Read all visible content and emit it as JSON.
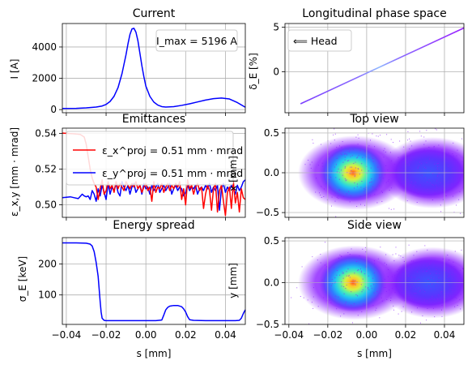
{
  "colors": {
    "current": "#0000ff",
    "emit_x": "#ff0000",
    "emit_y": "#0000ff",
    "espread": "#0000ff"
  },
  "chart_data": [
    {
      "id": "current",
      "type": "line",
      "title": "Current",
      "xlabel": "",
      "ylabel": "I [A]",
      "xlim": [
        -0.042,
        0.05
      ],
      "ylim": [
        -200,
        5500
      ],
      "xticks": [
        -0.04,
        -0.02,
        0.0,
        0.02,
        0.04
      ],
      "yticks": [
        0,
        2000,
        4000
      ],
      "ytick_labels": [
        "0",
        "2000",
        "4000"
      ],
      "grid": true,
      "annotation": "I_max = 5196 A",
      "series": [
        {
          "x": [
            -0.042,
            -0.035,
            -0.03,
            -0.025,
            -0.022,
            -0.02,
            -0.018,
            -0.016,
            -0.014,
            -0.012,
            -0.01,
            -0.009,
            -0.008,
            -0.007,
            -0.006,
            -0.005,
            -0.004,
            -0.003,
            -0.002,
            -0.001,
            0.0,
            0.002,
            0.004,
            0.006,
            0.008,
            0.01,
            0.014,
            0.018,
            0.022,
            0.026,
            0.03,
            0.034,
            0.038,
            0.042,
            0.046,
            0.05
          ],
          "y": [
            70,
            80,
            110,
            160,
            230,
            330,
            520,
            850,
            1400,
            2300,
            3500,
            4200,
            4800,
            5150,
            5196,
            4950,
            4400,
            3600,
            2800,
            2100,
            1500,
            850,
            480,
            290,
            190,
            160,
            190,
            270,
            370,
            490,
            610,
            700,
            740,
            680,
            450,
            150
          ]
        }
      ]
    },
    {
      "id": "phase",
      "type": "scatter",
      "title": "Longitudinal phase space",
      "xlabel": "",
      "ylabel": "δ_E [%]",
      "xlim": [
        -0.042,
        0.05
      ],
      "ylim": [
        -4.6,
        5.4
      ],
      "xticks": [
        -0.04,
        -0.02,
        0.0,
        0.02,
        0.04
      ],
      "yticks": [
        0,
        5
      ],
      "ytick_labels": [
        "0",
        "5"
      ],
      "grid": true,
      "legend": "⟸  Head",
      "line": {
        "x": [
          -0.034,
          0.05
        ],
        "y": [
          -3.6,
          4.9
        ]
      }
    },
    {
      "id": "emittance",
      "type": "line",
      "title": "Emittances",
      "xlabel": "",
      "ylabel": "ε_x,y [mm · mrad]",
      "xlim": [
        -0.042,
        0.05
      ],
      "ylim": [
        0.493,
        0.543
      ],
      "xticks": [
        -0.04,
        -0.02,
        0.0,
        0.02,
        0.04
      ],
      "yticks": [
        0.5,
        0.52,
        0.54
      ],
      "ytick_labels": [
        "0.50",
        "0.52",
        "0.54"
      ],
      "grid": true,
      "legend_position": "upper-left",
      "series": [
        {
          "name": "ε_x^proj = 0.51 mm · mrad",
          "x": [
            -0.042,
            -0.036,
            -0.033,
            -0.031,
            -0.03,
            -0.029,
            -0.028,
            -0.027,
            -0.026,
            -0.025,
            -0.024,
            -0.023,
            -0.022,
            -0.021,
            -0.02,
            -0.019,
            -0.018,
            -0.017,
            -0.016,
            -0.015,
            -0.014,
            -0.013,
            -0.012,
            -0.011,
            -0.01,
            -0.009,
            -0.008,
            -0.007,
            -0.006,
            -0.005,
            -0.004,
            -0.003,
            -0.002,
            -0.001,
            0.0,
            0.001,
            0.002,
            0.003,
            0.004,
            0.005,
            0.006,
            0.007,
            0.008,
            0.009,
            0.01,
            0.011,
            0.012,
            0.013,
            0.014,
            0.015,
            0.016,
            0.017,
            0.018,
            0.019,
            0.02,
            0.021,
            0.022,
            0.023,
            0.024,
            0.025,
            0.026,
            0.027,
            0.028,
            0.029,
            0.03,
            0.031,
            0.032,
            0.033,
            0.034,
            0.035,
            0.036,
            0.037,
            0.038,
            0.039,
            0.04,
            0.041,
            0.042,
            0.043,
            0.044,
            0.045,
            0.046,
            0.047,
            0.048,
            0.049,
            0.05
          ],
          "y": [
            0.5402,
            0.5398,
            0.5395,
            0.538,
            0.534,
            0.527,
            0.52,
            0.515,
            0.512,
            0.51,
            0.503,
            0.509,
            0.514,
            0.506,
            0.508,
            0.513,
            0.509,
            0.511,
            0.507,
            0.513,
            0.509,
            0.512,
            0.51,
            0.508,
            0.513,
            0.511,
            0.509,
            0.512,
            0.51,
            0.513,
            0.509,
            0.511,
            0.507,
            0.51,
            0.512,
            0.508,
            0.51,
            0.502,
            0.513,
            0.507,
            0.51,
            0.509,
            0.512,
            0.507,
            0.51,
            0.512,
            0.508,
            0.511,
            0.509,
            0.512,
            0.51,
            0.513,
            0.503,
            0.509,
            0.5,
            0.514,
            0.509,
            0.511,
            0.506,
            0.51,
            0.512,
            0.508,
            0.51,
            0.498,
            0.506,
            0.511,
            0.508,
            0.497,
            0.509,
            0.512,
            0.496,
            0.508,
            0.511,
            0.502,
            0.494,
            0.507,
            0.51,
            0.498,
            0.513,
            0.501,
            0.507,
            0.496,
            0.509,
            0.504,
            0.503
          ]
        },
        {
          "name": "ε_y^proj = 0.51 mm · mrad",
          "x": [
            -0.042,
            -0.038,
            -0.036,
            -0.034,
            -0.032,
            -0.031,
            -0.03,
            -0.029,
            -0.028,
            -0.027,
            -0.026,
            -0.025,
            -0.024,
            -0.023,
            -0.022,
            -0.021,
            -0.02,
            -0.019,
            -0.018,
            -0.017,
            -0.016,
            -0.015,
            -0.014,
            -0.013,
            -0.012,
            -0.011,
            -0.01,
            -0.009,
            -0.008,
            -0.007,
            -0.006,
            -0.005,
            -0.004,
            -0.003,
            -0.002,
            -0.001,
            0.0,
            0.001,
            0.002,
            0.003,
            0.004,
            0.005,
            0.006,
            0.007,
            0.008,
            0.009,
            0.01,
            0.011,
            0.012,
            0.013,
            0.014,
            0.015,
            0.016,
            0.017,
            0.018,
            0.019,
            0.02,
            0.021,
            0.022,
            0.023,
            0.024,
            0.025,
            0.026,
            0.027,
            0.028,
            0.029,
            0.03,
            0.031,
            0.032,
            0.033,
            0.034,
            0.035,
            0.036,
            0.037,
            0.038,
            0.039,
            0.04,
            0.041,
            0.042,
            0.043,
            0.044,
            0.045,
            0.046,
            0.047,
            0.048,
            0.049,
            0.05
          ],
          "y": [
            0.504,
            0.5045,
            0.504,
            0.5035,
            0.506,
            0.505,
            0.5045,
            0.505,
            0.503,
            0.508,
            0.506,
            0.502,
            0.509,
            0.505,
            0.511,
            0.507,
            0.503,
            0.512,
            0.506,
            0.51,
            0.508,
            0.512,
            0.507,
            0.505,
            0.513,
            0.51,
            0.508,
            0.511,
            0.506,
            0.51,
            0.512,
            0.507,
            0.509,
            0.511,
            0.506,
            0.512,
            0.509,
            0.51,
            0.506,
            0.511,
            0.508,
            0.51,
            0.512,
            0.507,
            0.509,
            0.511,
            0.508,
            0.51,
            0.512,
            0.506,
            0.509,
            0.511,
            0.508,
            0.51,
            0.509,
            0.505,
            0.507,
            0.511,
            0.508,
            0.51,
            0.509,
            0.511,
            0.506,
            0.509,
            0.51,
            0.508,
            0.511,
            0.509,
            0.512,
            0.507,
            0.51,
            0.508,
            0.511,
            0.497,
            0.509,
            0.512,
            0.507,
            0.51,
            0.508,
            0.511,
            0.509,
            0.506,
            0.511,
            0.508,
            0.51,
            0.513,
            0.514
          ]
        }
      ]
    },
    {
      "id": "topview",
      "type": "heatmap",
      "title": "Top view",
      "xlabel": "",
      "ylabel": "x [mm]",
      "xlim": [
        -0.042,
        0.05
      ],
      "ylim": [
        -0.56,
        0.56
      ],
      "xticks": [
        -0.04,
        -0.02,
        0.0,
        0.02,
        0.04
      ],
      "yticks": [
        -0.5,
        0.0,
        0.5
      ],
      "ytick_labels": [
        "−0.5",
        "0.0",
        "0.5"
      ],
      "grid": true,
      "colormap": "rainbow",
      "core_center_x": -0.007,
      "core_center_y": 0.0
    },
    {
      "id": "espread",
      "type": "line",
      "title": "Energy spread",
      "xlabel": "s [mm]",
      "ylabel": "σ_E [keV]",
      "xlim": [
        -0.042,
        0.05
      ],
      "ylim": [
        5,
        285
      ],
      "xticks": [
        -0.04,
        -0.02,
        0.0,
        0.02,
        0.04
      ],
      "xtick_labels": [
        "−0.04",
        "−0.02",
        "0.00",
        "0.02",
        "0.04"
      ],
      "yticks": [
        100,
        200
      ],
      "ytick_labels": [
        "100",
        "200"
      ],
      "grid": true,
      "series": [
        {
          "x": [
            -0.042,
            -0.035,
            -0.03,
            -0.028,
            -0.027,
            -0.026,
            -0.025,
            -0.024,
            -0.0235,
            -0.023,
            -0.0225,
            -0.022,
            -0.021,
            -0.02,
            -0.015,
            -0.01,
            -0.005,
            0.0,
            0.005,
            0.008,
            0.009,
            0.01,
            0.011,
            0.012,
            0.014,
            0.016,
            0.018,
            0.019,
            0.02,
            0.021,
            0.022,
            0.024,
            0.03,
            0.035,
            0.04,
            0.045,
            0.047,
            0.048,
            0.049,
            0.05
          ],
          "y": [
            268,
            268,
            267,
            264,
            258,
            240,
            205,
            160,
            120,
            80,
            45,
            25,
            18,
            17,
            17,
            17,
            17,
            17,
            17,
            19,
            35,
            52,
            60,
            64,
            66,
            66,
            62,
            55,
            45,
            30,
            20,
            18,
            17,
            17,
            17,
            17,
            18,
            25,
            40,
            52
          ]
        }
      ]
    },
    {
      "id": "sideview",
      "type": "heatmap",
      "title": "Side view",
      "xlabel": "s [mm]",
      "ylabel": "y [mm]",
      "xlim": [
        -0.042,
        0.05
      ],
      "ylim": [
        -0.5,
        0.54
      ],
      "xticks": [
        -0.04,
        -0.02,
        0.0,
        0.02,
        0.04
      ],
      "xtick_labels": [
        "−0.04",
        "−0.02",
        "0.00",
        "0.02",
        "0.04"
      ],
      "yticks": [
        -0.5,
        0.0,
        0.5
      ],
      "ytick_labels": [
        "−0.5",
        "0.0",
        "0.5"
      ],
      "grid": true,
      "colormap": "rainbow",
      "core_center_x": -0.007,
      "core_center_y": 0.0
    }
  ]
}
